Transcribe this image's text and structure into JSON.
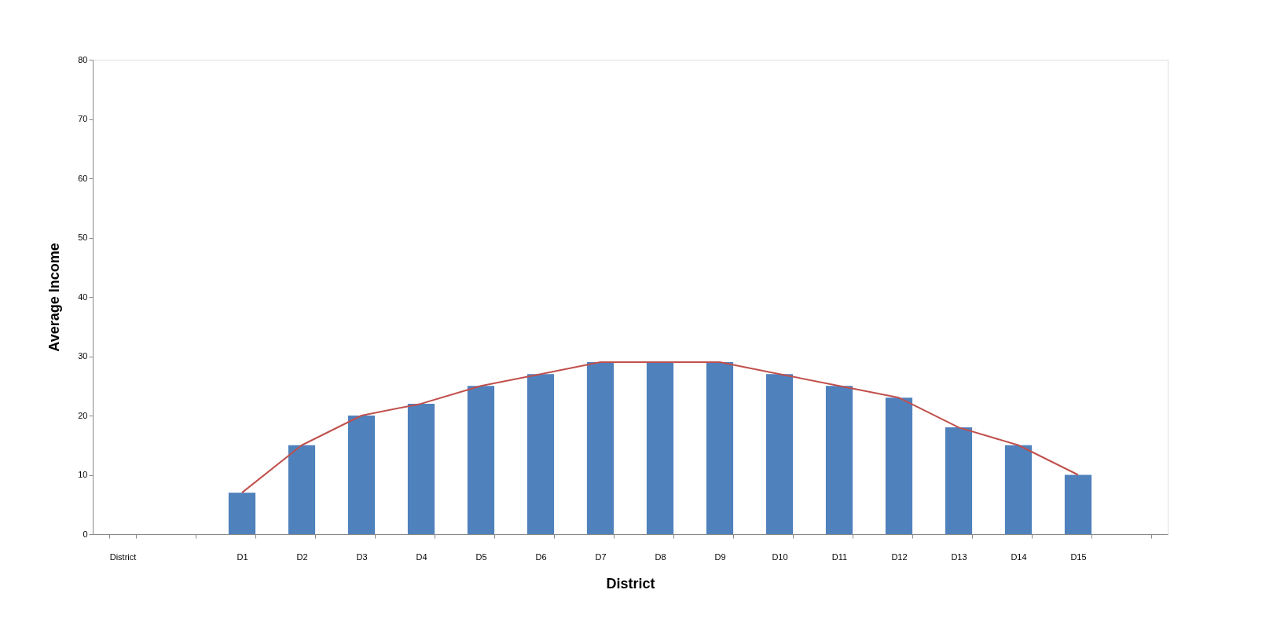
{
  "chart_data": {
    "type": "bar",
    "xlabel": "District",
    "ylabel": "Average Income",
    "categories": [
      "District",
      null,
      "D1",
      "D2",
      "D3",
      "D4",
      "D5",
      "D6",
      "D7",
      "D8",
      "D9",
      "D10",
      "D11",
      "D12",
      "D13",
      "D14",
      "D15",
      null
    ],
    "series": [
      {
        "color": "#4f81bd",
        "values": [
          null,
          null,
          7,
          15,
          20,
          22,
          25,
          27,
          29,
          29,
          29,
          27,
          25,
          23,
          18,
          15,
          10,
          null
        ]
      },
      {
        "type": "line",
        "color": "#c0504d",
        "values": [
          null,
          null,
          7,
          15,
          20,
          22,
          25,
          27,
          29,
          29,
          29,
          27,
          25,
          23,
          18,
          15,
          10,
          null
        ]
      }
    ],
    "ylim": [
      0,
      80
    ],
    "yticks": [
      0,
      10,
      20,
      30,
      40,
      50,
      60,
      70,
      80
    ],
    "grid": false,
    "legend": false,
    "marker": "none",
    "line_style": "solid"
  }
}
